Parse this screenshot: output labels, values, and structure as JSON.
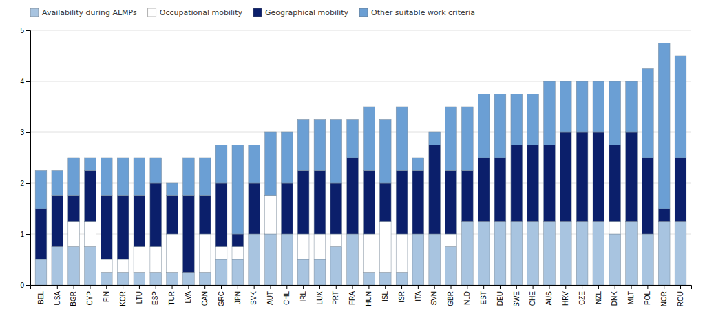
{
  "chart_data": {
    "type": "bar",
    "stacked": true,
    "categories": [
      "BEL",
      "USA",
      "BGR",
      "CYP",
      "FIN",
      "KOR",
      "LTU",
      "ESP",
      "TUR",
      "LVA",
      "CAN",
      "GRC",
      "JPN",
      "SVK",
      "AUT",
      "CHL",
      "IRL",
      "LUX",
      "PRT",
      "FRA",
      "HUN",
      "ISL",
      "ISR",
      "ITA",
      "SVN",
      "GBR",
      "NLD",
      "EST",
      "DEU",
      "SWE",
      "CHE",
      "AUS",
      "HRV",
      "CZE",
      "NZL",
      "DNK",
      "MLT",
      "POL",
      "NOR",
      "ROU"
    ],
    "series": [
      {
        "name": "Availability during ALMPs",
        "color": "#a8c4e0",
        "values": [
          0.5,
          0.75,
          0.75,
          0.75,
          0.25,
          0.25,
          0.25,
          0.25,
          0.25,
          0.25,
          0.25,
          0.5,
          0.5,
          1.0,
          1.0,
          1.0,
          0.5,
          0.5,
          0.75,
          1.0,
          0.25,
          0.25,
          0.25,
          1.0,
          1.0,
          0.75,
          1.25,
          1.25,
          1.25,
          1.25,
          1.25,
          1.25,
          1.25,
          1.25,
          1.25,
          1.0,
          1.25,
          1.0,
          1.25,
          1.25
        ]
      },
      {
        "name": "Occupational mobility",
        "color": "#ffffff",
        "values": [
          0.0,
          0.0,
          0.5,
          0.5,
          0.25,
          0.25,
          0.5,
          0.5,
          0.75,
          0.0,
          0.75,
          0.25,
          0.25,
          0.0,
          0.75,
          0.0,
          0.5,
          0.5,
          0.25,
          0.0,
          0.75,
          1.0,
          0.75,
          0.0,
          0.0,
          0.25,
          0.0,
          0.0,
          0.0,
          0.0,
          0.0,
          0.0,
          0.0,
          0.0,
          0.0,
          0.25,
          0.0,
          0.0,
          0.0,
          0.0
        ]
      },
      {
        "name": "Geographical mobility",
        "color": "#0b1f6b",
        "values": [
          1.0,
          1.0,
          0.5,
          1.0,
          1.25,
          1.25,
          1.0,
          1.25,
          0.75,
          1.5,
          0.75,
          1.25,
          0.25,
          1.0,
          0.0,
          1.0,
          1.25,
          1.25,
          1.0,
          1.5,
          1.25,
          0.75,
          1.25,
          1.25,
          1.75,
          1.25,
          1.0,
          1.25,
          1.25,
          1.5,
          1.5,
          1.5,
          1.75,
          1.75,
          1.75,
          1.5,
          1.75,
          1.5,
          0.25,
          1.25
        ]
      },
      {
        "name": "Other suitable work criteria",
        "color": "#6b9fd4",
        "values": [
          0.75,
          0.5,
          0.75,
          0.25,
          0.75,
          0.75,
          0.75,
          0.5,
          0.25,
          0.75,
          0.75,
          0.75,
          1.75,
          0.75,
          1.25,
          1.0,
          1.0,
          1.0,
          1.25,
          0.75,
          1.25,
          1.25,
          1.25,
          0.25,
          0.25,
          1.25,
          1.25,
          1.25,
          1.25,
          1.0,
          1.0,
          1.25,
          1.0,
          1.0,
          1.0,
          1.25,
          1.0,
          1.75,
          3.25,
          2.0
        ]
      }
    ],
    "ylim": [
      0,
      5
    ],
    "yticks": [
      0,
      1,
      2,
      3,
      4,
      5
    ],
    "grid": true,
    "legend": "top-left"
  }
}
